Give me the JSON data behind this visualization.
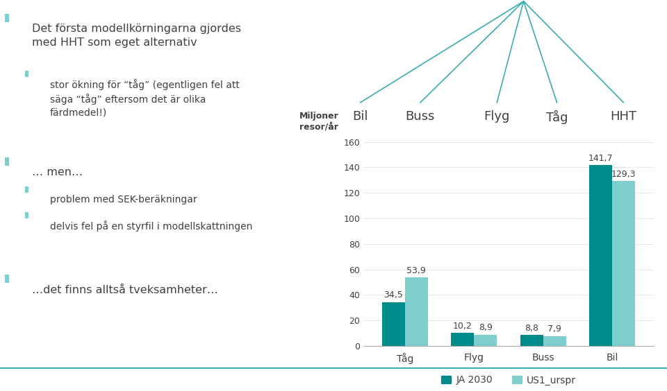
{
  "categories": [
    "Tåg",
    "Flyg",
    "Buss",
    "Bil"
  ],
  "ja2030_values": [
    34.5,
    10.2,
    8.8,
    141.7
  ],
  "us1_values": [
    53.9,
    8.9,
    7.9,
    129.3
  ],
  "ja2030_color": "#008B8B",
  "us1_color": "#7ECECE",
  "ylabel": "Miljoner\nresor/år",
  "ylim": [
    0,
    170
  ],
  "yticks": [
    0,
    20,
    40,
    60,
    80,
    100,
    120,
    140,
    160
  ],
  "legend_ja2030": "JA 2030",
  "legend_us1": "US1_urspr",
  "tree_labels": [
    "Bil",
    "Buss",
    "Flyg",
    "Tåg",
    "HHT"
  ],
  "bullet_color": "#7ECECE",
  "text_color": "#404040",
  "background_color": "#FFFFFF",
  "teal_line_color": "#3AACAC",
  "bottom_line_color": "#3AACAC"
}
